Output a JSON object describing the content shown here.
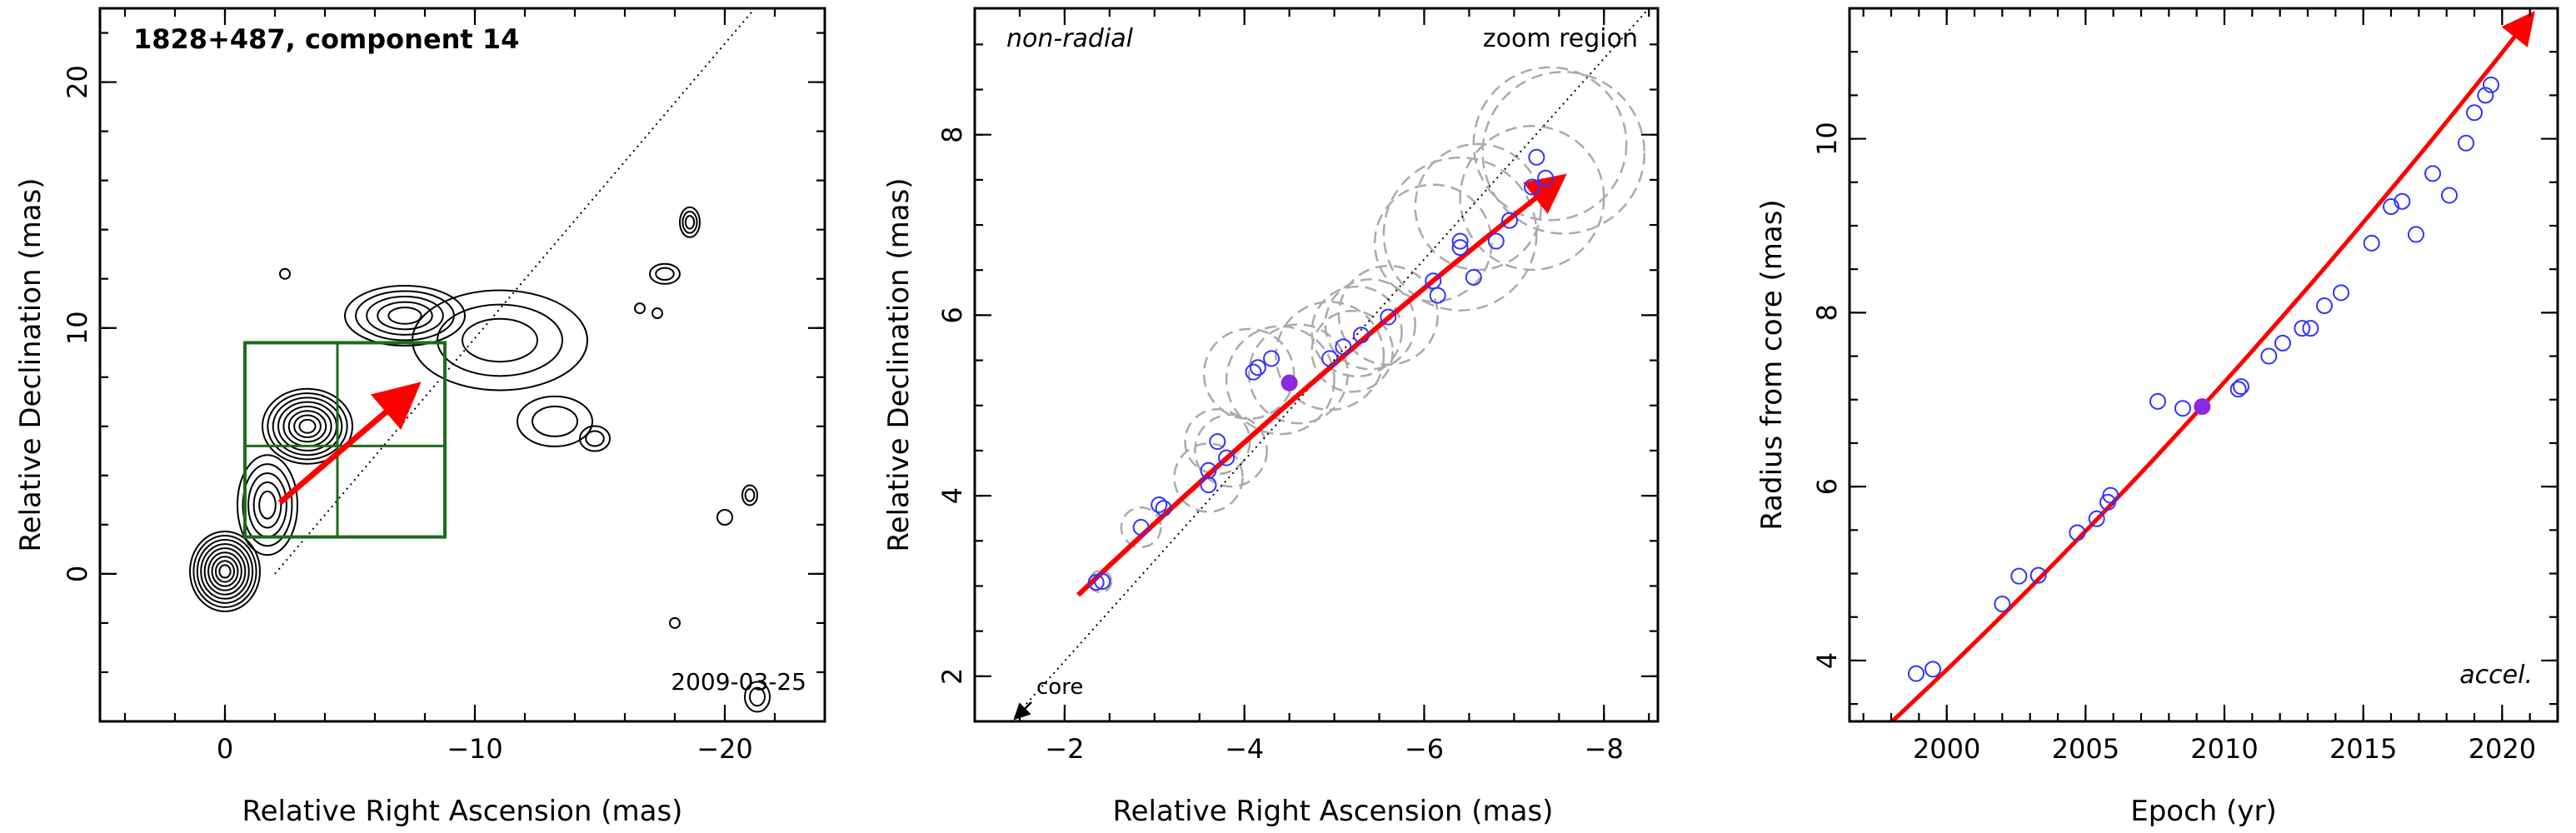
{
  "chart_data": [
    {
      "type": "contour",
      "title": "1828+487, component 14",
      "date": "2009-03-25",
      "xlabel": "Relative Right Ascension (mas)",
      "ylabel": "Relative Declination (mas)",
      "xlim": [
        5,
        -24
      ],
      "ylim": [
        -6,
        23
      ],
      "xticks": [
        0,
        -10,
        -20
      ],
      "yticks": [
        0,
        10,
        20
      ],
      "colors": {
        "contour": "#000000",
        "grid": "#1e6b1e",
        "arrow": "#ff0000",
        "points": "#3333ff",
        "trajectory": "#000000"
      },
      "contour_groups": [
        {
          "x": 0.0,
          "y": 0.1,
          "rx": 1.4,
          "ry": 1.6,
          "levels": 9
        },
        {
          "x": -1.7,
          "y": 2.8,
          "rx": 1.2,
          "ry": 2.0,
          "levels": 5
        },
        {
          "x": -3.3,
          "y": 6.0,
          "rx": 1.8,
          "ry": 1.5,
          "levels": 8
        },
        {
          "x": -7.2,
          "y": 10.5,
          "rx": 2.4,
          "ry": 1.2,
          "levels": 5
        },
        {
          "x": -11.0,
          "y": 9.5,
          "rx": 3.5,
          "ry": 2.0,
          "levels": 3
        },
        {
          "x": -13.2,
          "y": 6.2,
          "rx": 1.5,
          "ry": 1.0,
          "levels": 2
        },
        {
          "x": -18.6,
          "y": 14.3,
          "rx": 0.4,
          "ry": 0.6,
          "levels": 3
        },
        {
          "x": -17.6,
          "y": 12.2,
          "rx": 0.6,
          "ry": 0.4,
          "levels": 2
        },
        {
          "x": -14.8,
          "y": 5.5,
          "rx": 0.6,
          "ry": 0.5,
          "levels": 2
        },
        {
          "x": -21.0,
          "y": 3.2,
          "rx": 0.3,
          "ry": 0.4,
          "levels": 2
        },
        {
          "x": -20.0,
          "y": 2.3,
          "rx": 0.3,
          "ry": 0.3,
          "levels": 1
        },
        {
          "x": -2.4,
          "y": 12.2,
          "rx": 0.2,
          "ry": 0.2,
          "levels": 1
        },
        {
          "x": -16.6,
          "y": 10.8,
          "rx": 0.2,
          "ry": 0.2,
          "levels": 1
        },
        {
          "x": -17.3,
          "y": 10.6,
          "rx": 0.2,
          "ry": 0.2,
          "levels": 1
        },
        {
          "x": -18.0,
          "y": -2.0,
          "rx": 0.2,
          "ry": 0.2,
          "levels": 1
        },
        {
          "x": -21.3,
          "y": -5.0,
          "rx": 0.5,
          "ry": 0.6,
          "levels": 2
        }
      ],
      "zoom_box": {
        "x": [
          -0.8,
          -8.8
        ],
        "y": [
          1.5,
          9.4
        ],
        "divisions": [
          -4.5,
          5.2
        ]
      },
      "trajectory_line": {
        "x": [
          -2,
          -21.2
        ],
        "y": [
          0,
          23
        ]
      },
      "arrow": {
        "x": [
          -2.2,
          -7.5
        ],
        "y": [
          2.9,
          7.5
        ]
      }
    },
    {
      "type": "scatter",
      "title": "non-radial",
      "annotation": "zoom region",
      "core_label": "core",
      "xlabel": "Relative Right Ascension (mas)",
      "ylabel": "Relative Declination (mas)",
      "xlim": [
        -1,
        -8.6
      ],
      "ylim": [
        1.5,
        9.4
      ],
      "xticks": [
        -2,
        -4,
        -6,
        -8
      ],
      "yticks": [
        2,
        4,
        6,
        8
      ],
      "trajectory_line": {
        "x": [
          -1.4,
          -8.5
        ],
        "y": [
          1.5,
          9.4
        ]
      },
      "arrow": {
        "x": [
          -2.15,
          -7.5
        ],
        "y": [
          2.9,
          7.5
        ],
        "control": [
          -4.8,
          5.4
        ]
      },
      "points": [
        {
          "x": -2.35,
          "y": 3.04
        },
        {
          "x": -2.42,
          "y": 3.05
        },
        {
          "x": -2.85,
          "y": 3.65
        },
        {
          "x": -3.05,
          "y": 3.9
        },
        {
          "x": -3.1,
          "y": 3.86
        },
        {
          "x": -3.6,
          "y": 4.12
        },
        {
          "x": -3.6,
          "y": 4.28
        },
        {
          "x": -3.7,
          "y": 4.6
        },
        {
          "x": -3.8,
          "y": 4.42
        },
        {
          "x": -4.1,
          "y": 5.37
        },
        {
          "x": -4.15,
          "y": 5.42
        },
        {
          "x": -4.3,
          "y": 5.52
        },
        {
          "x": -4.95,
          "y": 5.52
        },
        {
          "x": -5.1,
          "y": 5.65
        },
        {
          "x": -5.3,
          "y": 5.78
        },
        {
          "x": -5.6,
          "y": 5.98
        },
        {
          "x": -6.1,
          "y": 6.38
        },
        {
          "x": -6.15,
          "y": 6.22
        },
        {
          "x": -6.4,
          "y": 6.75
        },
        {
          "x": -6.4,
          "y": 6.82
        },
        {
          "x": -6.55,
          "y": 6.42
        },
        {
          "x": -6.8,
          "y": 6.82
        },
        {
          "x": -6.95,
          "y": 7.05
        },
        {
          "x": -7.2,
          "y": 7.42
        },
        {
          "x": -7.25,
          "y": 7.75
        },
        {
          "x": -7.35,
          "y": 7.52
        }
      ],
      "highlight": {
        "x": -4.5,
        "y": 5.25
      },
      "fwhm_circles": [
        {
          "x": -2.4,
          "y": 3.05,
          "r": 0.12
        },
        {
          "x": -2.85,
          "y": 3.65,
          "r": 0.22
        },
        {
          "x": -3.6,
          "y": 4.2,
          "r": 0.38
        },
        {
          "x": -3.7,
          "y": 4.6,
          "r": 0.36
        },
        {
          "x": -3.85,
          "y": 4.5,
          "r": 0.4
        },
        {
          "x": -4.05,
          "y": 5.35,
          "r": 0.5
        },
        {
          "x": -4.4,
          "y": 5.28,
          "r": 0.6
        },
        {
          "x": -4.6,
          "y": 5.35,
          "r": 0.55
        },
        {
          "x": -4.95,
          "y": 5.55,
          "r": 0.6
        },
        {
          "x": -5.2,
          "y": 5.6,
          "r": 0.45
        },
        {
          "x": -5.25,
          "y": 5.82,
          "r": 0.5
        },
        {
          "x": -5.4,
          "y": 5.9,
          "r": 0.5
        },
        {
          "x": -5.6,
          "y": 6.0,
          "r": 0.55
        },
        {
          "x": -6.1,
          "y": 6.8,
          "r": 0.65
        },
        {
          "x": -6.4,
          "y": 6.9,
          "r": 0.85
        },
        {
          "x": -6.6,
          "y": 7.2,
          "r": 0.7
        },
        {
          "x": -7.2,
          "y": 7.3,
          "r": 0.8
        },
        {
          "x": -7.4,
          "y": 7.9,
          "r": 0.85
        },
        {
          "x": -7.55,
          "y": 7.8,
          "r": 0.9
        }
      ],
      "colors": {
        "points": "#3333ff",
        "highlight": "#8a2be2",
        "arrow": "#ff0000",
        "circles": "#aaaaaa"
      }
    },
    {
      "type": "scatter",
      "title": "accel.",
      "xlabel": "Epoch (yr)",
      "ylabel": "Radius from core (mas)",
      "xlim": [
        1996.5,
        2022
      ],
      "ylim": [
        3.3,
        11.5
      ],
      "xticks": [
        2000,
        2005,
        2010,
        2015,
        2020
      ],
      "yticks": [
        4,
        6,
        8,
        10
      ],
      "points": [
        {
          "x": 1998.9,
          "y": 3.85
        },
        {
          "x": 1999.5,
          "y": 3.9
        },
        {
          "x": 2002.0,
          "y": 4.65
        },
        {
          "x": 2002.6,
          "y": 4.97
        },
        {
          "x": 2003.3,
          "y": 4.98
        },
        {
          "x": 2004.7,
          "y": 5.47
        },
        {
          "x": 2005.4,
          "y": 5.63
        },
        {
          "x": 2005.8,
          "y": 5.82
        },
        {
          "x": 2005.9,
          "y": 5.9
        },
        {
          "x": 2007.6,
          "y": 6.98
        },
        {
          "x": 2008.5,
          "y": 6.9
        },
        {
          "x": 2010.5,
          "y": 7.12
        },
        {
          "x": 2010.6,
          "y": 7.15
        },
        {
          "x": 2011.6,
          "y": 7.5
        },
        {
          "x": 2012.1,
          "y": 7.65
        },
        {
          "x": 2012.8,
          "y": 7.82
        },
        {
          "x": 2013.1,
          "y": 7.82
        },
        {
          "x": 2013.6,
          "y": 8.08
        },
        {
          "x": 2014.2,
          "y": 8.23
        },
        {
          "x": 2015.3,
          "y": 8.8
        },
        {
          "x": 2016.0,
          "y": 9.22
        },
        {
          "x": 2016.4,
          "y": 9.28
        },
        {
          "x": 2016.9,
          "y": 8.9
        },
        {
          "x": 2017.5,
          "y": 9.6
        },
        {
          "x": 2018.1,
          "y": 9.35
        },
        {
          "x": 2018.7,
          "y": 9.95
        },
        {
          "x": 2019.0,
          "y": 10.3
        },
        {
          "x": 2019.4,
          "y": 10.5
        },
        {
          "x": 2019.6,
          "y": 10.62
        }
      ],
      "highlight": {
        "x": 2009.2,
        "y": 6.92
      },
      "fit": {
        "epoch0": 2009.2,
        "r0": 6.92,
        "v": 0.351,
        "a": 0.0048,
        "x_range": [
          1997.8,
          2021
        ]
      },
      "colors": {
        "points": "#3333ff",
        "highlight": "#8a2be2",
        "fit": "#ff0000"
      }
    }
  ]
}
